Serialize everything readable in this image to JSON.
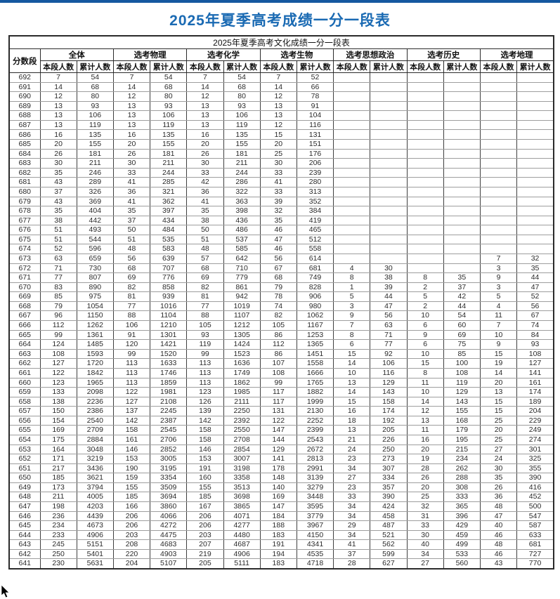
{
  "page": {
    "title": "2025年夏季高考成绩一分一段表",
    "subtitle": "2025年夏季高考文化成绩一分一段表"
  },
  "colors": {
    "title_blue": "#1a6ab3",
    "topbar_blue": "#1558a0",
    "grid_dark": "#2b2b2b",
    "grid_light": "#9e9e9e"
  },
  "table": {
    "score_col_header": "分数段",
    "groups": [
      "全体",
      "选考物理",
      "选考化学",
      "选考生物",
      "选考思想政治",
      "选考历史",
      "选考地理"
    ],
    "sub_headers": [
      "本段人数",
      "累计人数"
    ],
    "rows": [
      [
        692,
        7,
        54,
        7,
        54,
        7,
        54,
        7,
        52,
        "",
        "",
        "",
        "",
        "",
        ""
      ],
      [
        691,
        14,
        68,
        14,
        68,
        14,
        68,
        14,
        66,
        "",
        "",
        "",
        "",
        "",
        ""
      ],
      [
        690,
        12,
        80,
        12,
        80,
        12,
        80,
        12,
        78,
        "",
        "",
        "",
        "",
        "",
        ""
      ],
      [
        689,
        13,
        93,
        13,
        93,
        13,
        93,
        13,
        91,
        "",
        "",
        "",
        "",
        "",
        ""
      ],
      [
        688,
        13,
        106,
        13,
        106,
        13,
        106,
        13,
        104,
        "",
        "",
        "",
        "",
        "",
        ""
      ],
      [
        687,
        13,
        119,
        13,
        119,
        13,
        119,
        12,
        116,
        "",
        "",
        "",
        "",
        "",
        ""
      ],
      [
        686,
        16,
        135,
        16,
        135,
        16,
        135,
        15,
        131,
        "",
        "",
        "",
        "",
        "",
        ""
      ],
      [
        685,
        20,
        155,
        20,
        155,
        20,
        155,
        20,
        151,
        "",
        "",
        "",
        "",
        "",
        ""
      ],
      [
        684,
        26,
        181,
        26,
        181,
        26,
        181,
        25,
        176,
        "",
        "",
        "",
        "",
        "",
        ""
      ],
      [
        683,
        30,
        211,
        30,
        211,
        30,
        211,
        30,
        206,
        "",
        "",
        "",
        "",
        "",
        ""
      ],
      [
        682,
        35,
        246,
        33,
        244,
        33,
        244,
        33,
        239,
        "",
        "",
        "",
        "",
        "",
        ""
      ],
      [
        681,
        43,
        289,
        41,
        285,
        42,
        286,
        41,
        280,
        "",
        "",
        "",
        "",
        "",
        ""
      ],
      [
        680,
        37,
        326,
        36,
        321,
        36,
        322,
        33,
        313,
        "",
        "",
        "",
        "",
        "",
        ""
      ],
      [
        679,
        43,
        369,
        41,
        362,
        41,
        363,
        39,
        352,
        "",
        "",
        "",
        "",
        "",
        ""
      ],
      [
        678,
        35,
        404,
        35,
        397,
        35,
        398,
        32,
        384,
        "",
        "",
        "",
        "",
        "",
        ""
      ],
      [
        677,
        38,
        442,
        37,
        434,
        38,
        436,
        35,
        419,
        "",
        "",
        "",
        "",
        "",
        ""
      ],
      [
        676,
        51,
        493,
        50,
        484,
        50,
        486,
        46,
        465,
        "",
        "",
        "",
        "",
        "",
        ""
      ],
      [
        675,
        51,
        544,
        51,
        535,
        51,
        537,
        47,
        512,
        "",
        "",
        "",
        "",
        "",
        ""
      ],
      [
        674,
        52,
        596,
        48,
        583,
        48,
        585,
        46,
        558,
        "",
        "",
        "",
        "",
        "",
        ""
      ],
      [
        673,
        63,
        659,
        56,
        639,
        57,
        642,
        56,
        614,
        "",
        "",
        "",
        "",
        7,
        32
      ],
      [
        672,
        71,
        730,
        68,
        707,
        68,
        710,
        67,
        681,
        4,
        30,
        "",
        "",
        3,
        35
      ],
      [
        671,
        77,
        807,
        69,
        776,
        69,
        779,
        68,
        749,
        8,
        38,
        8,
        35,
        9,
        44
      ],
      [
        670,
        83,
        890,
        82,
        858,
        82,
        861,
        79,
        828,
        1,
        39,
        2,
        37,
        3,
        47
      ],
      [
        669,
        85,
        975,
        81,
        939,
        81,
        942,
        78,
        906,
        5,
        44,
        5,
        42,
        5,
        52
      ],
      [
        668,
        79,
        1054,
        77,
        1016,
        77,
        1019,
        74,
        980,
        3,
        47,
        2,
        44,
        4,
        56
      ],
      [
        667,
        96,
        1150,
        88,
        1104,
        88,
        1107,
        82,
        1062,
        9,
        56,
        10,
        54,
        11,
        67
      ],
      [
        666,
        112,
        1262,
        106,
        1210,
        105,
        1212,
        105,
        1167,
        7,
        63,
        6,
        60,
        7,
        74
      ],
      [
        665,
        99,
        1361,
        91,
        1301,
        93,
        1305,
        86,
        1253,
        8,
        71,
        9,
        69,
        10,
        84
      ],
      [
        664,
        124,
        1485,
        120,
        1421,
        119,
        1424,
        112,
        1365,
        6,
        77,
        6,
        75,
        9,
        93
      ],
      [
        663,
        108,
        1593,
        99,
        1520,
        99,
        1523,
        86,
        1451,
        15,
        92,
        10,
        85,
        15,
        108
      ],
      [
        662,
        127,
        1720,
        113,
        1633,
        113,
        1636,
        107,
        1558,
        14,
        106,
        15,
        100,
        19,
        127
      ],
      [
        661,
        122,
        1842,
        113,
        1746,
        113,
        1749,
        108,
        1666,
        10,
        116,
        8,
        108,
        14,
        141
      ],
      [
        660,
        123,
        1965,
        113,
        1859,
        113,
        1862,
        99,
        1765,
        13,
        129,
        11,
        119,
        20,
        161
      ],
      [
        659,
        133,
        2098,
        122,
        1981,
        123,
        1985,
        117,
        1882,
        14,
        143,
        10,
        129,
        13,
        174
      ],
      [
        658,
        138,
        2236,
        127,
        2108,
        126,
        2111,
        117,
        1999,
        15,
        158,
        14,
        143,
        15,
        189
      ],
      [
        657,
        150,
        2386,
        137,
        2245,
        139,
        2250,
        131,
        2130,
        16,
        174,
        12,
        155,
        15,
        204
      ],
      [
        656,
        154,
        2540,
        142,
        2387,
        142,
        2392,
        122,
        2252,
        18,
        192,
        13,
        168,
        25,
        229
      ],
      [
        655,
        169,
        2709,
        158,
        2545,
        158,
        2550,
        147,
        2399,
        13,
        205,
        11,
        179,
        20,
        249
      ],
      [
        654,
        175,
        2884,
        161,
        2706,
        158,
        2708,
        144,
        2543,
        21,
        226,
        16,
        195,
        25,
        274
      ],
      [
        653,
        164,
        3048,
        146,
        2852,
        146,
        2854,
        129,
        2672,
        24,
        250,
        20,
        215,
        27,
        301
      ],
      [
        652,
        171,
        3219,
        153,
        3005,
        153,
        3007,
        141,
        2813,
        23,
        273,
        19,
        234,
        24,
        325
      ],
      [
        651,
        217,
        3436,
        190,
        3195,
        191,
        3198,
        178,
        2991,
        34,
        307,
        28,
        262,
        30,
        355
      ],
      [
        650,
        185,
        3621,
        159,
        3354,
        160,
        3358,
        148,
        3139,
        27,
        334,
        26,
        288,
        35,
        390
      ],
      [
        649,
        173,
        3794,
        155,
        3509,
        155,
        3513,
        140,
        3279,
        23,
        357,
        20,
        308,
        26,
        416
      ],
      [
        648,
        211,
        4005,
        185,
        3694,
        185,
        3698,
        169,
        3448,
        33,
        390,
        25,
        333,
        36,
        452
      ],
      [
        647,
        198,
        4203,
        166,
        3860,
        167,
        3865,
        147,
        3595,
        34,
        424,
        32,
        365,
        48,
        500
      ],
      [
        646,
        236,
        4439,
        206,
        4066,
        206,
        4071,
        184,
        3779,
        34,
        458,
        31,
        396,
        47,
        547
      ],
      [
        645,
        234,
        4673,
        206,
        4272,
        206,
        4277,
        188,
        3967,
        29,
        487,
        33,
        429,
        40,
        587
      ],
      [
        644,
        233,
        4906,
        203,
        4475,
        203,
        4480,
        183,
        4150,
        34,
        521,
        30,
        459,
        46,
        633
      ],
      [
        643,
        245,
        5151,
        208,
        4683,
        207,
        4687,
        191,
        4341,
        41,
        562,
        40,
        499,
        48,
        681
      ],
      [
        642,
        250,
        5401,
        220,
        4903,
        219,
        4906,
        194,
        4535,
        37,
        599,
        34,
        533,
        46,
        727
      ],
      [
        641,
        230,
        5631,
        204,
        5107,
        205,
        5111,
        183,
        4718,
        28,
        627,
        27,
        560,
        43,
        770
      ]
    ]
  }
}
